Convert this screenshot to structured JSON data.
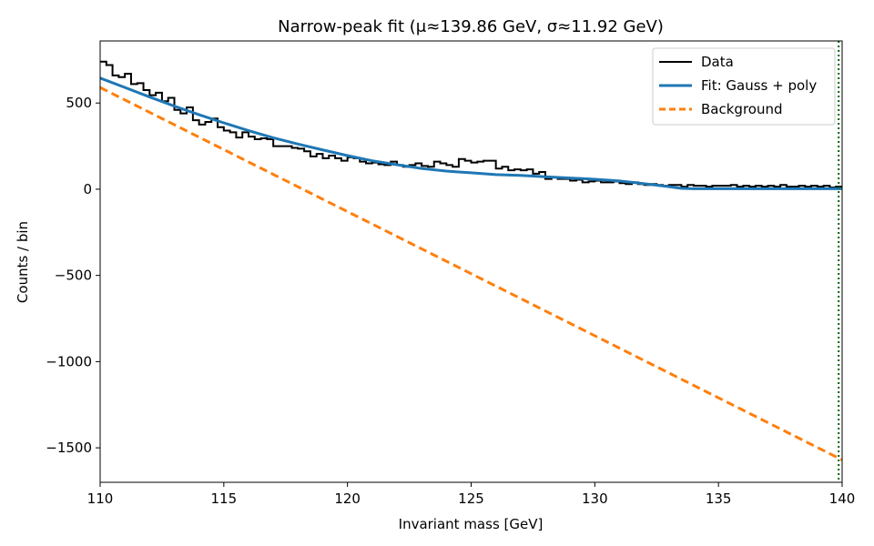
{
  "chart_data": {
    "type": "line",
    "title": "Narrow-peak fit (μ≈139.86 GeV, σ≈11.92 GeV)",
    "xlabel": "Invariant mass [GeV]",
    "ylabel": "Counts / bin",
    "xlim": [
      110,
      140
    ],
    "ylim": [
      -1700,
      860
    ],
    "xticks": [
      110,
      115,
      120,
      125,
      130,
      135,
      140
    ],
    "yticks": [
      -1500,
      -1000,
      -500,
      0,
      500
    ],
    "ytick_labels": [
      "−1500",
      "−1000",
      "−500",
      "0",
      "500"
    ],
    "grid": false,
    "legend_position": "top-right",
    "colors": {
      "data": "#000000",
      "fit": "#1f77b4",
      "background": "#ff7f0e",
      "mu_marker": "#006400"
    },
    "series": [
      {
        "name": "Data",
        "style": "step",
        "bin_edges": [
          110.0,
          110.25,
          110.5,
          110.75,
          111.0,
          111.25,
          111.5,
          111.75,
          112.0,
          112.25,
          112.5,
          112.75,
          113.0,
          113.25,
          113.5,
          113.75,
          114.0,
          114.25,
          114.5,
          114.75,
          115.0,
          115.25,
          115.5,
          115.75,
          116.0,
          116.25,
          116.5,
          116.75,
          117.0,
          117.25,
          117.5,
          117.75,
          118.0,
          118.25,
          118.5,
          118.75,
          119.0,
          119.25,
          119.5,
          119.75,
          120.0,
          120.25,
          120.5,
          120.75,
          121.0,
          121.25,
          121.5,
          121.75,
          122.0,
          122.25,
          122.5,
          122.75,
          123.0,
          123.25,
          123.5,
          123.75,
          124.0,
          124.25,
          124.5,
          124.75,
          125.0,
          125.25,
          125.5,
          125.75,
          126.0,
          126.25,
          126.5,
          126.75,
          127.0,
          127.25,
          127.5,
          127.75,
          128.0,
          128.25,
          128.5,
          128.75,
          129.0,
          129.25,
          129.5,
          129.75,
          130.0,
          130.25,
          130.5,
          130.75,
          131.0,
          131.25,
          131.5,
          131.75,
          132.0,
          132.25,
          132.5,
          132.75,
          133.0,
          133.25,
          133.5,
          133.75,
          134.0,
          134.25,
          134.5,
          134.75,
          135.0,
          135.25,
          135.5,
          135.75,
          136.0,
          136.25,
          136.5,
          136.75,
          137.0,
          137.25,
          137.5,
          137.75,
          138.0,
          138.25,
          138.5,
          138.75,
          139.0,
          139.25,
          139.5,
          139.75,
          140.0
        ],
        "counts": [
          740,
          720,
          660,
          650,
          670,
          610,
          615,
          575,
          545,
          560,
          510,
          530,
          460,
          440,
          475,
          400,
          375,
          390,
          410,
          360,
          340,
          330,
          300,
          330,
          305,
          290,
          295,
          290,
          250,
          250,
          250,
          240,
          235,
          220,
          190,
          205,
          180,
          195,
          180,
          165,
          185,
          180,
          160,
          150,
          155,
          145,
          140,
          160,
          140,
          130,
          140,
          150,
          135,
          130,
          160,
          150,
          140,
          130,
          175,
          165,
          155,
          160,
          165,
          165,
          120,
          130,
          110,
          115,
          110,
          115,
          90,
          100,
          60,
          70,
          60,
          60,
          50,
          55,
          40,
          45,
          50,
          40,
          40,
          45,
          35,
          30,
          40,
          30,
          25,
          30,
          25,
          20,
          25,
          25,
          15,
          25,
          20,
          20,
          15,
          20,
          20,
          20,
          25,
          15,
          20,
          15,
          20,
          15,
          20,
          15,
          25,
          15,
          15,
          20,
          15,
          20,
          15,
          20,
          10,
          15
        ]
      },
      {
        "name": "Fit: Gauss + poly",
        "style": "line",
        "x": [
          110,
          111,
          112,
          113,
          114,
          115,
          116,
          117,
          118,
          119,
          120,
          121,
          122,
          123,
          124,
          125,
          126,
          127,
          128,
          129,
          130,
          131,
          132,
          133,
          133.5,
          134,
          135,
          136,
          137,
          138,
          139,
          140
        ],
        "y": [
          645,
          590,
          535,
          482,
          432,
          385,
          340,
          298,
          262,
          228,
          195,
          165,
          142,
          120,
          105,
          95,
          85,
          80,
          72,
          65,
          58,
          48,
          32,
          15,
          5,
          3,
          3,
          3,
          3,
          3,
          3,
          3
        ]
      },
      {
        "name": "Background",
        "style": "dashed",
        "x": [
          110,
          140
        ],
        "y": [
          590,
          -1570
        ]
      }
    ],
    "vertical_line": {
      "x": 139.86
    }
  }
}
